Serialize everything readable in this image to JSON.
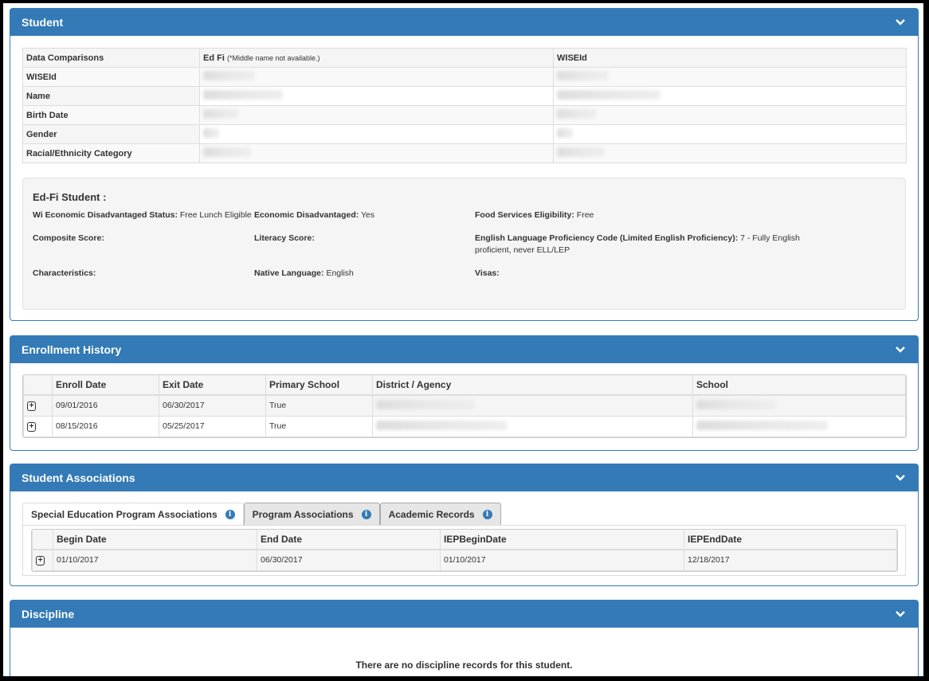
{
  "student": {
    "title": "Student",
    "comparison": {
      "headers": [
        "Data Comparisons",
        "Ed Fi",
        "WISEId"
      ],
      "edfi_note": "(*Middle name not available.)",
      "rows": [
        "WISEId",
        "Name",
        "Birth Date",
        "Gender",
        "Racial/Ethnicity Category"
      ]
    },
    "edfi": {
      "title": "Ed-Fi Student :",
      "fields": [
        {
          "label": "Wi Economic Disadvantaged Status:",
          "value": "Free Lunch Eligible"
        },
        {
          "label": "Economic Disadvantaged:",
          "value": "Yes"
        },
        {
          "label": "Food Services Eligibility:",
          "value": "Free"
        },
        {
          "label": "Composite Score:",
          "value": ""
        },
        {
          "label": "Literacy Score:",
          "value": ""
        },
        {
          "label": "English Language Proficiency Code (Limited English Proficiency):",
          "value": "7 - Fully English proficient, never ELL/LEP"
        },
        {
          "label": "Characteristics:",
          "value": ""
        },
        {
          "label": "Native Language:",
          "value": "English"
        },
        {
          "label": "Visas:",
          "value": ""
        }
      ]
    }
  },
  "enrollment": {
    "title": "Enrollment History",
    "columns": [
      "",
      "Enroll Date",
      "Exit Date",
      "Primary School",
      "District / Agency",
      "School"
    ],
    "rows": [
      [
        "09/01/2016",
        "06/30/2017",
        "True"
      ],
      [
        "08/15/2016",
        "05/25/2017",
        "True"
      ]
    ]
  },
  "associations": {
    "title": "Student Associations",
    "tabs": [
      "Special Education Program Associations",
      "Program Associations",
      "Academic Records"
    ],
    "columns": [
      "",
      "Begin Date",
      "End Date",
      "IEPBeginDate",
      "IEPEndDate"
    ],
    "rows": [
      [
        "01/10/2017",
        "06/30/2017",
        "01/10/2017",
        "12/18/2017"
      ]
    ]
  },
  "discipline": {
    "title": "Discipline",
    "empty": "There are no discipline records for this student."
  },
  "colors": {
    "header": "#337ab7"
  }
}
